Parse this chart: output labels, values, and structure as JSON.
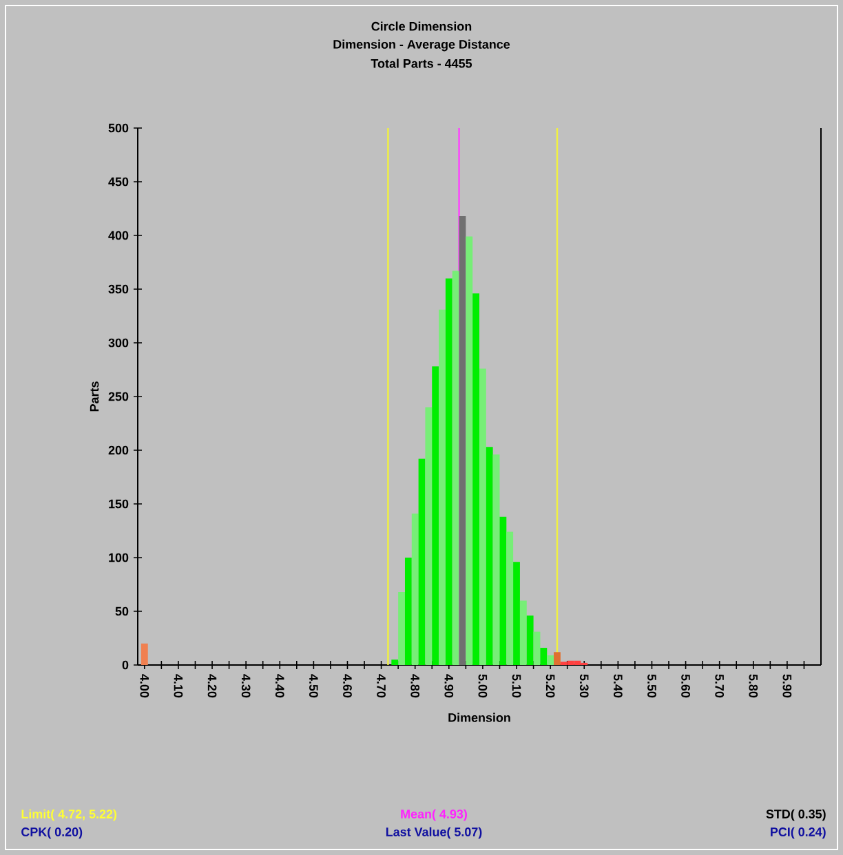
{
  "chart_data": {
    "type": "histogram",
    "title": "Circle Dimension",
    "subtitle": "Dimension - Average Distance",
    "xlabel": "Dimension",
    "ylabel": "Parts",
    "bins": [
      3.99,
      4.01,
      4.03,
      4.05,
      4.07,
      4.09,
      4.11,
      4.13,
      4.15,
      4.17,
      4.19,
      4.21,
      4.23,
      4.25,
      4.27,
      4.29,
      4.31,
      4.33,
      4.35,
      4.37,
      4.39,
      4.41,
      4.43,
      4.45,
      4.47,
      4.49,
      4.51,
      4.53,
      4.55,
      4.57,
      4.59,
      4.61,
      4.63,
      4.65,
      4.67,
      4.69,
      4.71,
      4.73,
      4.75,
      4.77,
      4.79,
      4.81,
      4.83,
      4.85,
      4.87,
      4.89,
      4.91,
      4.93,
      4.95,
      4.97,
      4.99,
      5.01,
      5.03,
      5.05,
      5.07,
      5.09,
      5.11,
      5.13,
      5.15,
      5.17,
      5.19,
      5.21,
      5.23,
      5.25,
      5.27,
      5.29,
      5.31
    ],
    "values": [
      20,
      0,
      0,
      0,
      0,
      0,
      0,
      0,
      0,
      0,
      0,
      0,
      0,
      0,
      0,
      0,
      0,
      0,
      0,
      0,
      0,
      0,
      0,
      0,
      0,
      0,
      0,
      0,
      0,
      0,
      0,
      0,
      0,
      0,
      0,
      0,
      0,
      5,
      68,
      100,
      141,
      192,
      240,
      278,
      331,
      360,
      367,
      418,
      399,
      346,
      276,
      203,
      196,
      138,
      124,
      96,
      60,
      46,
      31,
      16,
      9,
      12,
      3,
      4,
      4,
      2
    ],
    "colors": [
      "#f08050",
      "#00ee00",
      "#00ee00",
      "#00ee00",
      "#00ee00",
      "#00ee00",
      "#00ee00",
      "#00ee00",
      "#00ee00",
      "#00ee00",
      "#00ee00",
      "#00ee00",
      "#00ee00",
      "#00ee00",
      "#00ee00",
      "#00ee00",
      "#00ee00",
      "#00ee00",
      "#00ee00",
      "#00ee00",
      "#00ee00",
      "#00ee00",
      "#00ee00",
      "#00ee00",
      "#00ee00",
      "#00ee00",
      "#00ee00",
      "#00ee00",
      "#00ee00",
      "#00ee00",
      "#00ee00",
      "#00ee00",
      "#00ee00",
      "#00ee00",
      "#00ee00",
      "#00ee00",
      "#00ee00",
      "#00ee00",
      "#77ee77",
      "#00ee00",
      "#77ee77",
      "#00ee00",
      "#77ee77",
      "#00ee00",
      "#77ee77",
      "#00ee00",
      "#77ee77",
      "#707070",
      "#77ee77",
      "#00ee00",
      "#77ee77",
      "#00ee00",
      "#77ee77",
      "#00ee00",
      "#77ee77",
      "#00ee00",
      "#77ee77",
      "#00ee00",
      "#77ee77",
      "#00ee00",
      "#77ee77",
      "#e07030",
      "#ff4040",
      "#ff4040",
      "#ff4040",
      "#ff4040"
    ],
    "xlim": [
      3.98,
      6.0
    ],
    "xticks": [
      {
        "value": 4.0,
        "label": "4.00"
      },
      {
        "value": 4.05,
        "label": null
      },
      {
        "value": 4.1,
        "label": "4.10"
      },
      {
        "value": 4.15,
        "label": null
      },
      {
        "value": 4.2,
        "label": "4.20"
      },
      {
        "value": 4.25,
        "label": null
      },
      {
        "value": 4.3,
        "label": "4.30"
      },
      {
        "value": 4.35,
        "label": null
      },
      {
        "value": 4.4,
        "label": "4.40"
      },
      {
        "value": 4.45,
        "label": null
      },
      {
        "value": 4.5,
        "label": "4.50"
      },
      {
        "value": 4.55,
        "label": null
      },
      {
        "value": 4.6,
        "label": "4.60"
      },
      {
        "value": 4.65,
        "label": null
      },
      {
        "value": 4.7,
        "label": "4.70"
      },
      {
        "value": 4.75,
        "label": null
      },
      {
        "value": 4.8,
        "label": "4.80"
      },
      {
        "value": 4.85,
        "label": null
      },
      {
        "value": 4.9,
        "label": "4.90"
      },
      {
        "value": 4.95,
        "label": null
      },
      {
        "value": 5.0,
        "label": "5.00"
      },
      {
        "value": 5.05,
        "label": null
      },
      {
        "value": 5.1,
        "label": "5.10"
      },
      {
        "value": 5.15,
        "label": null
      },
      {
        "value": 5.2,
        "label": "5.20"
      },
      {
        "value": 5.25,
        "label": null
      },
      {
        "value": 5.3,
        "label": "5.30"
      },
      {
        "value": 5.35,
        "label": null
      },
      {
        "value": 5.4,
        "label": "5.40"
      },
      {
        "value": 5.45,
        "label": null
      },
      {
        "value": 5.5,
        "label": "5.50"
      },
      {
        "value": 5.55,
        "label": null
      },
      {
        "value": 5.6,
        "label": "5.60"
      },
      {
        "value": 5.65,
        "label": null
      },
      {
        "value": 5.7,
        "label": "5.70"
      },
      {
        "value": 5.75,
        "label": null
      },
      {
        "value": 5.8,
        "label": "5.80"
      },
      {
        "value": 5.85,
        "label": null
      },
      {
        "value": 5.9,
        "label": "5.90"
      },
      {
        "value": 5.95,
        "label": null
      }
    ],
    "ylim": [
      0,
      500
    ],
    "yticks": [
      0,
      50,
      100,
      150,
      200,
      250,
      300,
      350,
      400,
      450,
      500
    ],
    "ref_lines": [
      {
        "axis": "x",
        "value": 4.72,
        "color": "#f0f040"
      },
      {
        "axis": "x",
        "value": 5.22,
        "color": "#f0f040"
      },
      {
        "axis": "x",
        "value": 4.93,
        "color": "#ff40ff"
      }
    ],
    "annotations": [
      "Total Parts - 4455",
      "Limit( 4.72, 5.22)",
      "Mean( 4.93)",
      "STD( 0.35)",
      "CPK( 0.20)",
      "Last Value( 5.07)",
      "PCI( 0.24)"
    ]
  }
}
